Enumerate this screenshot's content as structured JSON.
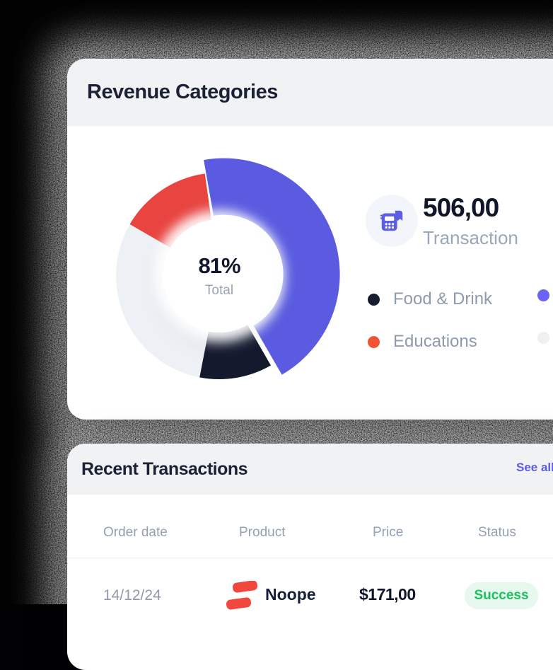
{
  "colors": {
    "accent_purple": "#5b5ce2",
    "chart_purple": "#5a5be0",
    "chart_dark": "#141a2e",
    "chart_gray": "#edf0f4",
    "chart_red": "#e84440",
    "legend_dark": "#171d31",
    "legend_orange": "#f15233",
    "legend_purple": "#6a63f6",
    "legend_gray": "#eef0f3",
    "success_green": "#1fc05f",
    "success_bg": "#e7f8ee",
    "brand_red": "#f2473d"
  },
  "revenue_card": {
    "title": "Revenue Categories",
    "donut_center": {
      "value": "81%",
      "label": "Total"
    },
    "stat": {
      "value": "506,00",
      "label": "Transaction",
      "icon": "pos-terminal-icon"
    },
    "legend": [
      {
        "label": "Food & Drink",
        "color": "#171d31"
      },
      {
        "label": "Educations",
        "color": "#f15233"
      },
      {
        "label": "",
        "color": "#6a63f6"
      },
      {
        "label": "",
        "color": "#eef0f3"
      }
    ]
  },
  "chart_data": {
    "type": "pie",
    "subtype": "donut",
    "title": "Revenue Categories",
    "center_value": "81%",
    "center_label": "Total",
    "legend_position": "right",
    "segments": [
      {
        "label": "",
        "color": "#5a5be0",
        "start_deg": -10,
        "end_deg": 150,
        "approx_percent": 44,
        "exploded": true
      },
      {
        "label": "Food & Drink",
        "color": "#141a2e",
        "start_deg": 150,
        "end_deg": 191,
        "approx_percent": 11,
        "exploded": false
      },
      {
        "label": "",
        "color": "#edf0f4",
        "start_deg": 191,
        "end_deg": 300,
        "approx_percent": 30,
        "exploded": false
      },
      {
        "label": "Educations",
        "color": "#e84440",
        "start_deg": 300,
        "end_deg": 352,
        "approx_percent": 15,
        "exploded": false
      }
    ]
  },
  "transactions_card": {
    "title": "Recent Transactions",
    "see_all_label": "See all",
    "columns": [
      "Order date",
      "Product",
      "Price",
      "Status"
    ],
    "rows": [
      {
        "order_date": "14/12/24",
        "product": "Noope",
        "price": "$171,00",
        "status": "Success"
      }
    ]
  }
}
